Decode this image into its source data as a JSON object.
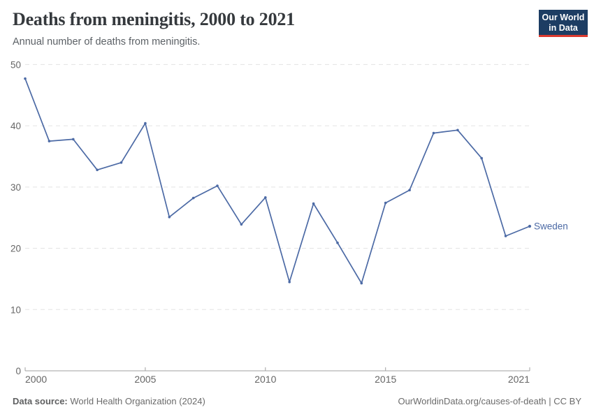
{
  "header": {
    "title": "Deaths from meningitis, 2000 to 2021",
    "subtitle": "Annual number of deaths from meningitis."
  },
  "logo": {
    "line1": "Our World",
    "line2": "in Data"
  },
  "chart_data": {
    "type": "line",
    "title": "Deaths from meningitis, 2000 to 2021",
    "subtitle": "Annual number of deaths from meningitis.",
    "xlabel": "",
    "ylabel": "",
    "xlim": [
      2000,
      2021
    ],
    "ylim": [
      0,
      50
    ],
    "xticks": [
      2000,
      2005,
      2010,
      2015,
      2021
    ],
    "yticks": [
      0,
      10,
      20,
      30,
      40,
      50
    ],
    "grid": "horizontal-dashed",
    "legend_position": "end-of-line-label",
    "x": [
      2000,
      2001,
      2002,
      2003,
      2004,
      2005,
      2006,
      2007,
      2008,
      2009,
      2010,
      2011,
      2012,
      2013,
      2014,
      2015,
      2016,
      2017,
      2018,
      2019,
      2020,
      2021
    ],
    "series": [
      {
        "name": "Sweden",
        "color": "#4c6aa5",
        "values": [
          47.7,
          37.5,
          37.8,
          32.8,
          34.0,
          40.4,
          25.1,
          28.2,
          30.2,
          23.9,
          28.3,
          14.5,
          27.3,
          20.9,
          14.3,
          27.4,
          29.5,
          38.8,
          39.3,
          34.7,
          22.0,
          23.6
        ]
      }
    ]
  },
  "colors": {
    "grid": "#e3e3e3",
    "axis": "#a1a1a1",
    "tick_label": "#666666",
    "title": "#35393d",
    "subtitle": "#5c6166",
    "series": "#4c6aa5",
    "logo_bg": "#1d3d63",
    "logo_accent": "#dc3a2f"
  },
  "footer": {
    "source_label": "Data source:",
    "source_value": "World Health Organization (2024)",
    "credit": "OurWorldinData.org/causes-of-death | CC BY"
  }
}
